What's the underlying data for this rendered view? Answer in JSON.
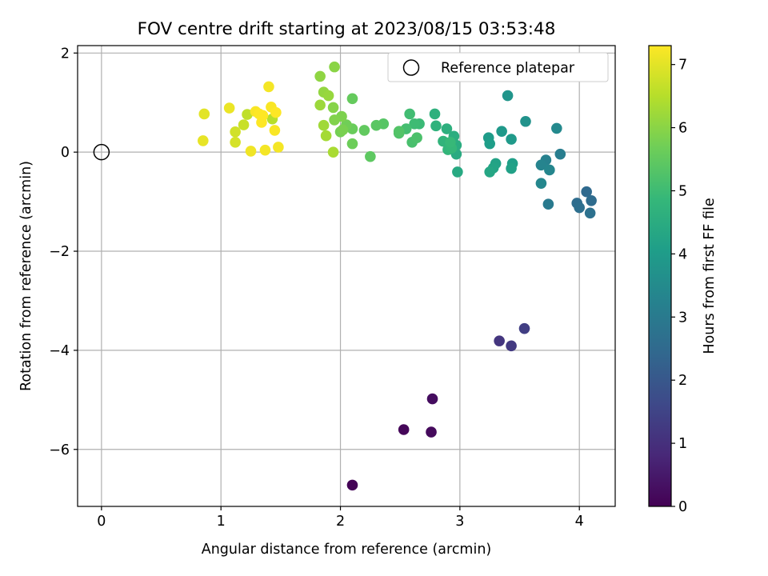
{
  "chart_data": {
    "type": "scatter",
    "title": "FOV centre drift starting at 2023/08/15 03:53:48",
    "xlabel": "Angular distance from reference (arcmin)",
    "ylabel": "Rotation from reference (arcmin)",
    "xlim": [
      -0.2,
      4.3
    ],
    "ylim": [
      -7.15,
      2.15
    ],
    "xticks": [
      0,
      1,
      2,
      3,
      4
    ],
    "xtick_labels": [
      "0",
      "1",
      "2",
      "3",
      "4"
    ],
    "yticks": [
      2,
      0,
      -2,
      -4,
      -6
    ],
    "ytick_labels": [
      "2",
      "0",
      "−2",
      "−4",
      "−6"
    ],
    "grid": true,
    "legend": {
      "placement": "top-right",
      "entries": [
        "Reference platepar"
      ]
    },
    "reference_point": {
      "label": "Reference platepar",
      "x": 0,
      "y": 0,
      "marker": "open-circle"
    },
    "colorbar": {
      "label": "Hours from first FF file",
      "range": [
        0,
        7.3
      ],
      "ticks": [
        0,
        1,
        2,
        3,
        4,
        5,
        6,
        7
      ],
      "tick_labels": [
        "0",
        "1",
        "2",
        "3",
        "4",
        "5",
        "6",
        "7"
      ],
      "colormap": "viridis",
      "stops": [
        "#440154",
        "#482878",
        "#3e4989",
        "#31688e",
        "#26828e",
        "#1f9e89",
        "#35b779",
        "#6ece58",
        "#b5de2b",
        "#fde725"
      ]
    },
    "points": [
      {
        "x": 2.1,
        "y": -6.72,
        "c": 0.05
      },
      {
        "x": 2.53,
        "y": -5.6,
        "c": 0.12
      },
      {
        "x": 2.76,
        "y": -5.65,
        "c": 0.18
      },
      {
        "x": 2.77,
        "y": -4.98,
        "c": 0.25
      },
      {
        "x": 3.33,
        "y": -3.81,
        "c": 1.15
      },
      {
        "x": 3.43,
        "y": -3.91,
        "c": 1.25
      },
      {
        "x": 3.54,
        "y": -3.56,
        "c": 1.35
      },
      {
        "x": 4.06,
        "y": -0.8,
        "c": 2.5
      },
      {
        "x": 4.1,
        "y": -0.98,
        "c": 2.55
      },
      {
        "x": 3.98,
        "y": -1.03,
        "c": 2.6
      },
      {
        "x": 4.0,
        "y": -1.12,
        "c": 2.65
      },
      {
        "x": 4.09,
        "y": -1.23,
        "c": 2.7
      },
      {
        "x": 3.74,
        "y": -1.05,
        "c": 3.0
      },
      {
        "x": 3.84,
        "y": -0.04,
        "c": 3.1
      },
      {
        "x": 3.72,
        "y": -0.16,
        "c": 3.2
      },
      {
        "x": 3.68,
        "y": -0.26,
        "c": 3.3
      },
      {
        "x": 3.75,
        "y": -0.36,
        "c": 3.35
      },
      {
        "x": 3.68,
        "y": -0.63,
        "c": 3.4
      },
      {
        "x": 3.81,
        "y": 0.48,
        "c": 3.45
      },
      {
        "x": 3.55,
        "y": 0.62,
        "c": 3.7
      },
      {
        "x": 3.4,
        "y": 1.14,
        "c": 3.8
      },
      {
        "x": 3.35,
        "y": 0.42,
        "c": 3.9
      },
      {
        "x": 3.43,
        "y": 0.26,
        "c": 3.95
      },
      {
        "x": 3.24,
        "y": 0.29,
        "c": 4.0
      },
      {
        "x": 3.25,
        "y": 0.17,
        "c": 4.05
      },
      {
        "x": 3.44,
        "y": -0.23,
        "c": 4.1
      },
      {
        "x": 3.43,
        "y": -0.33,
        "c": 4.15
      },
      {
        "x": 3.3,
        "y": -0.23,
        "c": 4.2
      },
      {
        "x": 3.28,
        "y": -0.32,
        "c": 4.25
      },
      {
        "x": 3.25,
        "y": -0.4,
        "c": 4.3
      },
      {
        "x": 2.98,
        "y": -0.4,
        "c": 4.4
      },
      {
        "x": 2.97,
        "y": -0.04,
        "c": 4.45
      },
      {
        "x": 2.97,
        "y": 0.14,
        "c": 4.5
      },
      {
        "x": 2.95,
        "y": 0.32,
        "c": 4.55
      },
      {
        "x": 2.89,
        "y": 0.47,
        "c": 4.6
      },
      {
        "x": 2.79,
        "y": 0.77,
        "c": 4.65
      },
      {
        "x": 2.8,
        "y": 0.53,
        "c": 4.7
      },
      {
        "x": 2.86,
        "y": 0.22,
        "c": 4.75
      },
      {
        "x": 2.9,
        "y": 0.05,
        "c": 4.8
      },
      {
        "x": 2.93,
        "y": 0.08,
        "c": 4.85
      },
      {
        "x": 2.92,
        "y": 0.2,
        "c": 4.9
      },
      {
        "x": 2.66,
        "y": 0.57,
        "c": 4.95
      },
      {
        "x": 2.62,
        "y": 0.57,
        "c": 5.0
      },
      {
        "x": 2.58,
        "y": 0.77,
        "c": 5.05
      },
      {
        "x": 2.55,
        "y": 0.47,
        "c": 5.1
      },
      {
        "x": 2.6,
        "y": 0.2,
        "c": 5.15
      },
      {
        "x": 2.64,
        "y": 0.29,
        "c": 5.2
      },
      {
        "x": 2.49,
        "y": 0.38,
        "c": 5.25
      },
      {
        "x": 2.49,
        "y": 0.42,
        "c": 5.3
      },
      {
        "x": 2.36,
        "y": 0.57,
        "c": 5.35
      },
      {
        "x": 2.3,
        "y": 0.54,
        "c": 5.4
      },
      {
        "x": 2.25,
        "y": -0.09,
        "c": 5.45
      },
      {
        "x": 2.2,
        "y": 0.44,
        "c": 5.5
      },
      {
        "x": 2.1,
        "y": 1.08,
        "c": 5.55
      },
      {
        "x": 2.1,
        "y": 0.47,
        "c": 5.6
      },
      {
        "x": 2.1,
        "y": 0.17,
        "c": 5.65
      },
      {
        "x": 2.05,
        "y": 0.55,
        "c": 5.7
      },
      {
        "x": 2.0,
        "y": 0.41,
        "c": 5.75
      },
      {
        "x": 2.02,
        "y": 0.45,
        "c": 5.8
      },
      {
        "x": 2.01,
        "y": 0.72,
        "c": 5.85
      },
      {
        "x": 1.95,
        "y": 0.65,
        "c": 5.9
      },
      {
        "x": 1.94,
        "y": 0.9,
        "c": 5.95
      },
      {
        "x": 1.95,
        "y": 1.72,
        "c": 6.0
      },
      {
        "x": 1.83,
        "y": 1.53,
        "c": 6.05
      },
      {
        "x": 1.86,
        "y": 1.21,
        "c": 6.1
      },
      {
        "x": 1.9,
        "y": 1.14,
        "c": 6.15
      },
      {
        "x": 1.83,
        "y": 0.95,
        "c": 6.2
      },
      {
        "x": 1.86,
        "y": 0.54,
        "c": 6.25
      },
      {
        "x": 1.88,
        "y": 0.33,
        "c": 6.3
      },
      {
        "x": 1.94,
        "y": 0.0,
        "c": 6.35
      },
      {
        "x": 1.43,
        "y": 0.67,
        "c": 6.5
      },
      {
        "x": 1.22,
        "y": 0.76,
        "c": 6.6
      },
      {
        "x": 1.19,
        "y": 0.55,
        "c": 6.7
      },
      {
        "x": 1.12,
        "y": 0.41,
        "c": 6.8
      },
      {
        "x": 1.12,
        "y": 0.2,
        "c": 6.85
      },
      {
        "x": 0.86,
        "y": 0.77,
        "c": 7.0
      },
      {
        "x": 0.85,
        "y": 0.23,
        "c": 7.05
      },
      {
        "x": 1.07,
        "y": 0.89,
        "c": 7.1
      },
      {
        "x": 1.25,
        "y": 0.02,
        "c": 7.15
      },
      {
        "x": 1.37,
        "y": 0.04,
        "c": 7.2
      },
      {
        "x": 1.48,
        "y": 0.1,
        "c": 7.2
      },
      {
        "x": 1.4,
        "y": 1.32,
        "c": 7.2
      },
      {
        "x": 1.42,
        "y": 0.91,
        "c": 7.25
      },
      {
        "x": 1.45,
        "y": 0.44,
        "c": 7.25
      },
      {
        "x": 1.29,
        "y": 0.82,
        "c": 7.25
      },
      {
        "x": 1.32,
        "y": 0.77,
        "c": 7.3
      },
      {
        "x": 1.35,
        "y": 0.74,
        "c": 7.3
      },
      {
        "x": 1.34,
        "y": 0.6,
        "c": 7.3
      },
      {
        "x": 1.46,
        "y": 0.8,
        "c": 7.3
      }
    ]
  }
}
